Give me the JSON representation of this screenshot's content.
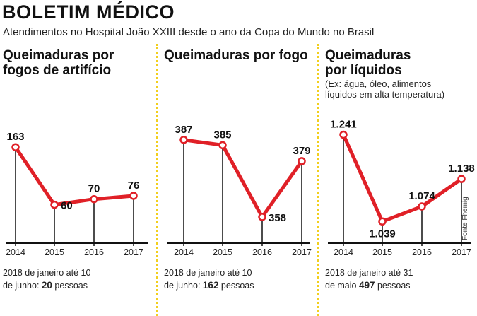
{
  "header": {
    "title": "BOLETIM MÉDICO",
    "subtitle": "Atendimentos no Hospital João XXIII desde o ano da Copa do Mundo no Brasil"
  },
  "source": "Fonte Fhemig",
  "colors": {
    "line": "#e02027",
    "divider": "#f2cf1d",
    "axis": "#111111"
  },
  "panels": [
    {
      "title_line1": "Queimaduras por",
      "title_line2": "fogos de artifício",
      "note_line1": "",
      "note_line2": "",
      "footer_line1": "2018 de janeiro até 10",
      "footer_prefix": "de junho: ",
      "footer_count": "20",
      "footer_suffix": " pessoas"
    },
    {
      "title_line1": "Queimaduras por fogo",
      "title_line2": "",
      "note_line1": "",
      "note_line2": "",
      "footer_line1": "2018 de janeiro até 10",
      "footer_prefix": "de junho: ",
      "footer_count": "162",
      "footer_suffix": " pessoas"
    },
    {
      "title_line1": "Queimaduras",
      "title_line2": "por líquidos",
      "note_line1": "(Ex: água, óleo, alimentos",
      "note_line2": "líquidos em alta temperatura)",
      "footer_line1": "2018 de janeiro até 31",
      "footer_prefix": "de maio ",
      "footer_count": "497",
      "footer_suffix": " pessoas"
    }
  ],
  "chart_data": [
    {
      "type": "line",
      "title": "Queimaduras por fogos de artifício",
      "categories": [
        "2014",
        "2015",
        "2016",
        "2017"
      ],
      "values": [
        163,
        60,
        70,
        76
      ],
      "labels": [
        "163",
        "60",
        "70",
        "76"
      ],
      "ylim": [
        0,
        200
      ]
    },
    {
      "type": "line",
      "title": "Queimaduras por fogo",
      "categories": [
        "2014",
        "2015",
        "2016",
        "2017"
      ],
      "values": [
        387,
        385,
        358,
        379
      ],
      "labels": [
        "387",
        "385",
        "358",
        "379"
      ],
      "ylim": [
        350,
        392
      ]
    },
    {
      "type": "line",
      "title": "Queimaduras por líquidos",
      "categories": [
        "2014",
        "2015",
        "2016",
        "2017"
      ],
      "values": [
        1241,
        1039,
        1074,
        1138
      ],
      "labels": [
        "1.241",
        "1.039",
        "1.074",
        "1.138"
      ],
      "ylim": [
        1000,
        1260
      ]
    }
  ]
}
